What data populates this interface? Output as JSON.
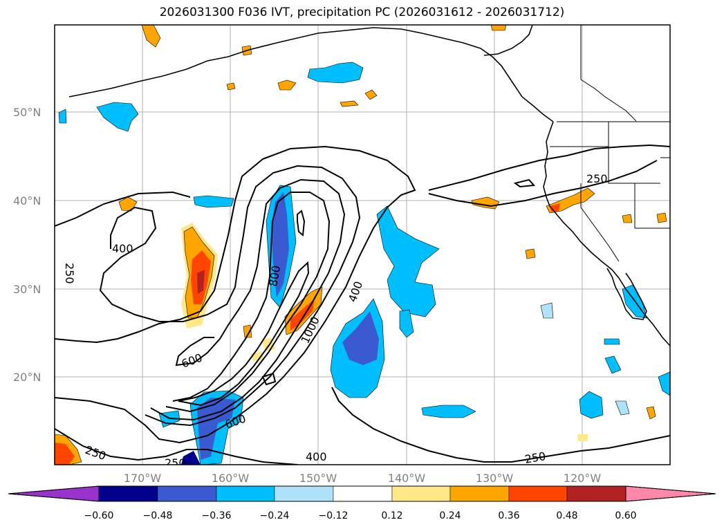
{
  "title": "2026031300 F036 IVT, precipitation PC (2026031612 - 2026031712)",
  "map": {
    "lat_labels": [
      "50°N",
      "40°N",
      "30°N",
      "20°N"
    ],
    "lon_labels": [
      "170°W",
      "160°W",
      "150°W",
      "140°W",
      "130°W",
      "120°W"
    ],
    "contour_labels": {
      "c400_left": "400",
      "c250_left": "250",
      "c800": "800",
      "c1000": "1000",
      "c400_mid": "400",
      "c600_a": "600",
      "c600_b": "600",
      "c250_bl": "250",
      "c250_bl2": "250",
      "c400_bot": "400",
      "c250_br": "250",
      "c250_tr": "250"
    }
  },
  "colorbar": {
    "ticks": [
      "−0.60",
      "−0.48",
      "−0.36",
      "−0.24",
      "−0.12",
      "0.12",
      "0.24",
      "0.36",
      "0.48",
      "0.60"
    ],
    "colors": {
      "under": "#9933cc",
      "b1": "#00008b",
      "b2": "#3a5bd0",
      "b3": "#00bfff",
      "b4": "#aee3fb",
      "b5": "#ffffff",
      "b6": "#ffe88a",
      "b7": "#ffa500",
      "b8": "#ff4500",
      "b9": "#b22222",
      "over": "#ff88aa"
    }
  }
}
